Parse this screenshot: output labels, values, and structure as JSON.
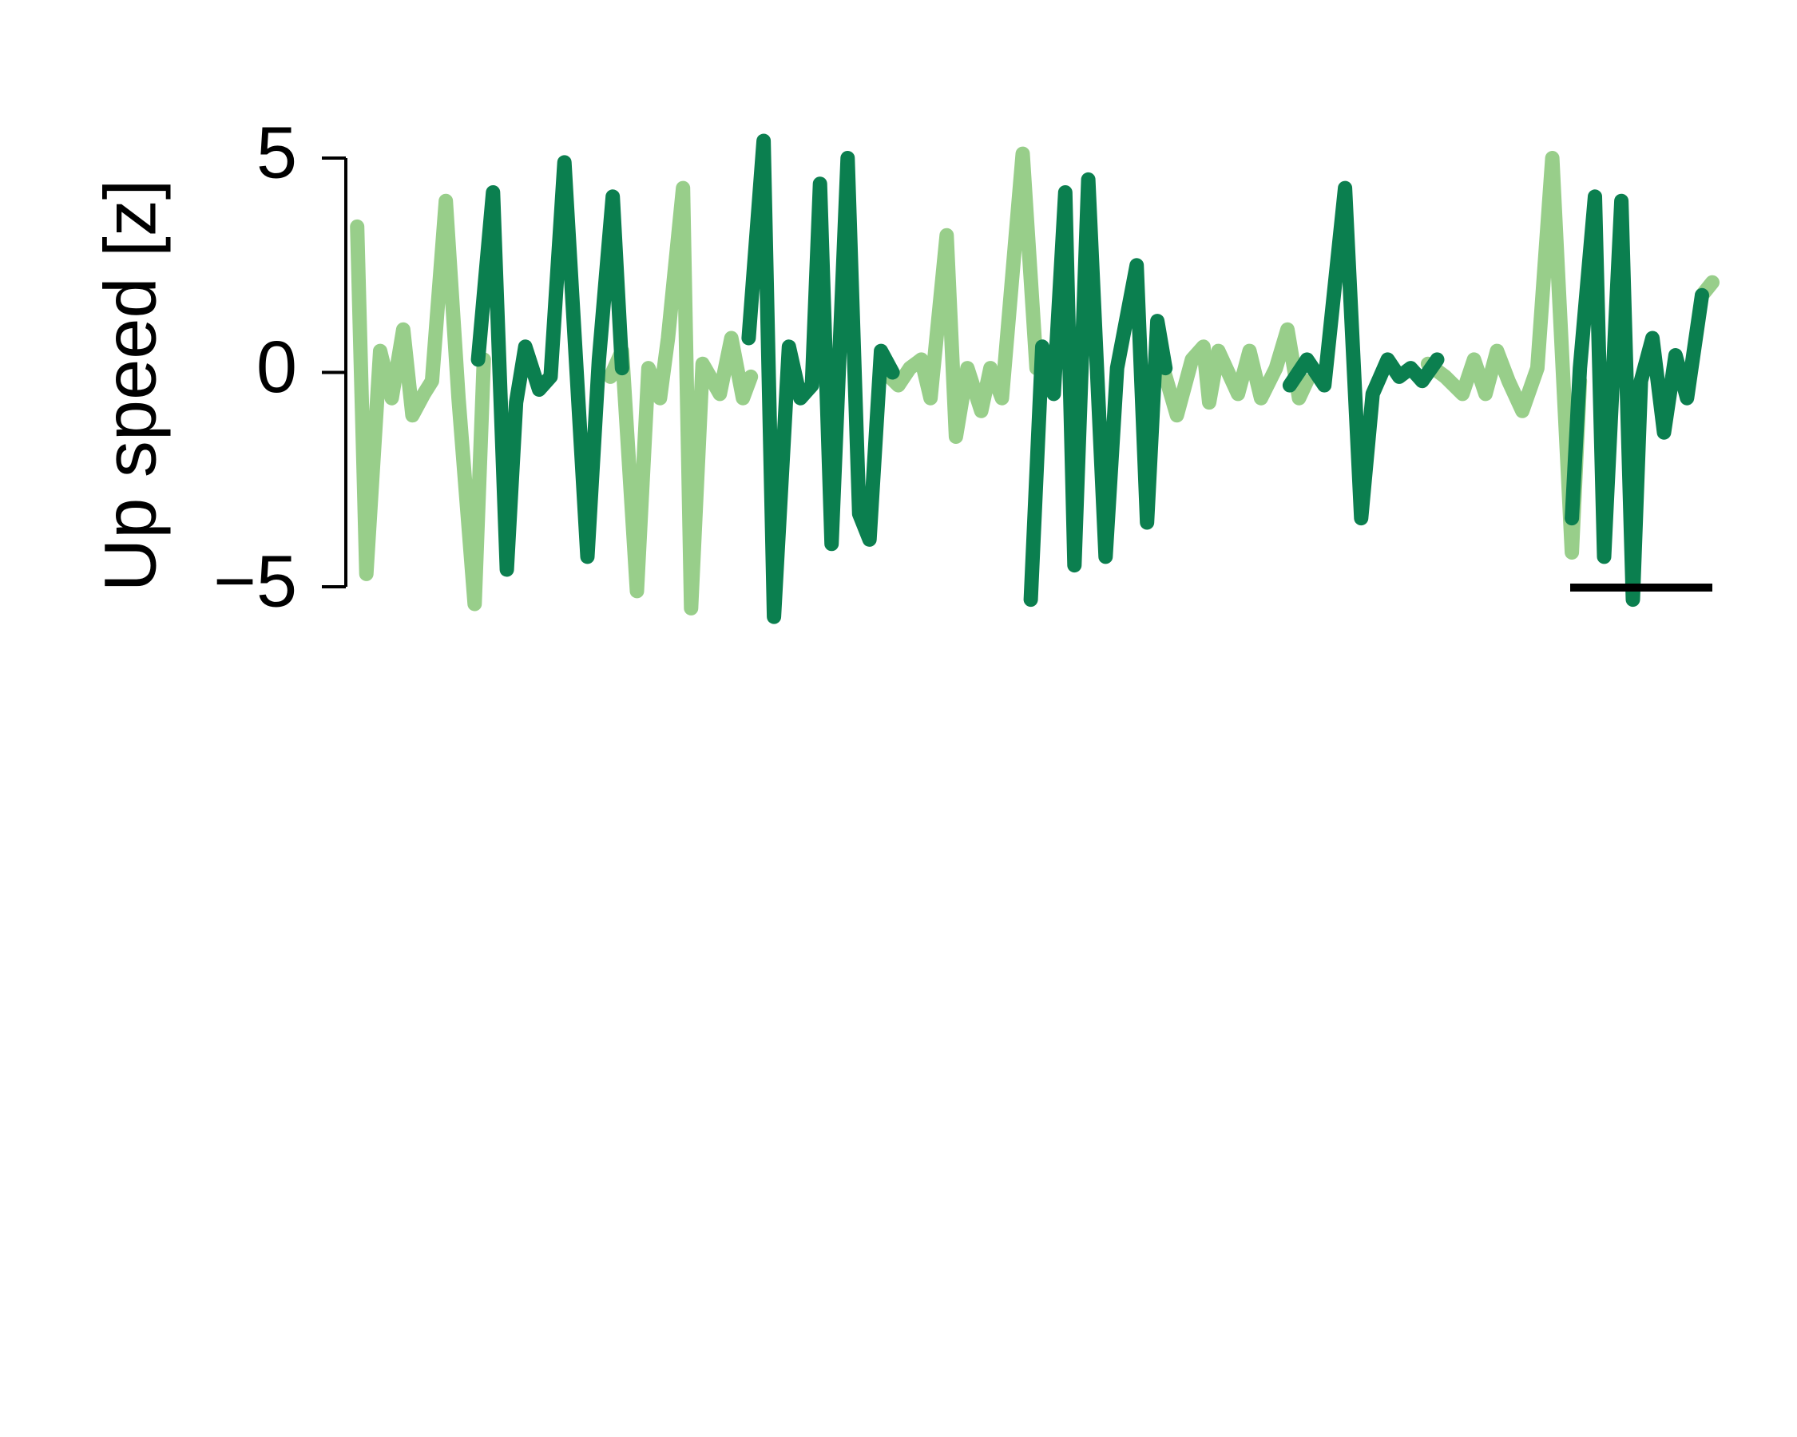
{
  "chart_data": {
    "type": "line",
    "ylabel": "Up speed [z]",
    "ylim": [
      -5,
      5
    ],
    "yticks": [
      {
        "value": -5,
        "label": "−5"
      },
      0,
      5
    ],
    "xlim": [
      0,
      118.2
    ],
    "series": [
      {
        "color": "#98ce8a",
        "x": [
          0.5,
          1.3,
          2.5,
          3.5,
          4.5,
          5.3,
          6.3,
          7.0,
          8.2,
          9.3,
          10.7,
          11.5,
          null,
          22.5,
          23.5,
          24.8,
          25.8,
          26.8,
          27.5,
          28.8,
          29.5,
          30.5,
          32.0,
          33.0,
          34.0,
          34.7,
          null,
          46.0,
          47.5,
          48.5,
          49.5,
          50.3,
          51.7,
          52.5,
          53.5,
          54.7,
          55.5,
          56.5,
          58.3,
          59.5,
          null,
          70.5,
          71.7,
          73.0,
          74.0,
          74.5,
          75.3,
          77.0,
          78.0,
          79.0,
          80.3,
          81.3,
          82.3,
          83.0,
          null,
          93.5,
          95.0,
          96.5,
          97.5,
          98.5,
          99.5,
          100.5,
          101.7,
          103.0,
          104.3,
          106.0,
          106.7,
          null,
          117.3,
          118.2
        ],
        "values": [
          3.4,
          -4.7,
          0.5,
          -0.6,
          1.0,
          -1.0,
          -0.5,
          -0.2,
          4.0,
          -0.6,
          -5.4,
          0.3,
          null,
          -0.1,
          0.5,
          -5.1,
          0.1,
          -0.6,
          0.8,
          4.3,
          -5.5,
          0.2,
          -0.5,
          0.8,
          -0.6,
          -0.1,
          null,
          0.1,
          -0.3,
          0.1,
          0.3,
          -0.6,
          3.2,
          -1.5,
          0.1,
          -0.9,
          0.1,
          -0.6,
          5.1,
          0.1,
          null,
          0.1,
          -1.0,
          0.3,
          0.6,
          -0.7,
          0.5,
          -0.5,
          0.5,
          -0.6,
          0.1,
          1.0,
          -0.6,
          -0.2,
          null,
          0.2,
          -0.1,
          -0.5,
          0.3,
          -0.5,
          0.5,
          -0.2,
          -0.9,
          0.1,
          5.0,
          -4.2,
          -0.2,
          null,
          1.8,
          2.1
        ]
      },
      {
        "color": "#0b7f4f",
        "x": [
          11.0,
          12.3,
          13.5,
          14.3,
          15.1,
          16.3,
          17.3,
          18.5,
          20.5,
          21.5,
          22.7,
          23.5,
          null,
          34.5,
          35.8,
          36.7,
          38.0,
          39.0,
          40.0,
          40.7,
          41.7,
          43.1,
          44.1,
          45.0,
          46.0,
          47.0,
          null,
          59.0,
          60.0,
          61.0,
          62.0,
          62.8,
          64.0,
          65.5,
          66.5,
          68.2,
          69.1,
          70.0,
          70.7,
          null,
          81.5,
          83.0,
          84.5,
          86.3,
          87.7,
          88.7,
          90.0,
          91.0,
          92.0,
          93.0,
          94.3,
          null,
          106.0,
          106.7,
          108.0,
          108.8,
          110.3,
          111.3,
          112.0,
          113.0,
          114.0,
          115.0,
          116.0,
          117.3
        ],
        "values": [
          0.3,
          4.2,
          -4.6,
          -0.7,
          0.6,
          -0.4,
          -0.1,
          4.9,
          -4.3,
          0.3,
          4.1,
          0.1,
          null,
          0.8,
          5.4,
          -5.7,
          0.6,
          -0.6,
          -0.3,
          4.4,
          -4.0,
          5.0,
          -3.3,
          -3.9,
          0.5,
          0.0,
          null,
          -5.3,
          0.6,
          -0.5,
          4.2,
          -4.5,
          4.5,
          -4.3,
          0.1,
          2.5,
          -3.5,
          1.2,
          0.1,
          null,
          -0.3,
          0.3,
          -0.3,
          4.3,
          -3.4,
          -0.5,
          0.3,
          -0.1,
          0.1,
          -0.2,
          0.3,
          null,
          -3.4,
          0.1,
          4.1,
          -4.3,
          4.0,
          -5.3,
          -0.2,
          0.8,
          -1.4,
          0.4,
          -0.6,
          1.8
        ]
      }
    ]
  }
}
